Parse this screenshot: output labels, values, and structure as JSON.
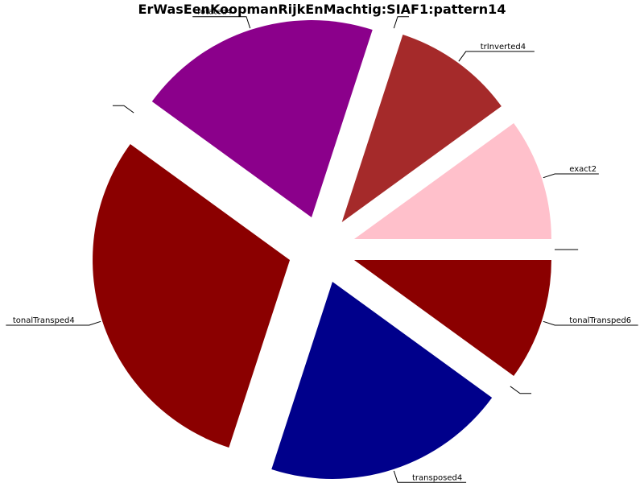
{
  "chart_data": {
    "type": "pie",
    "title": "ErWasEenKoopmanRijkEnMachtig:SIAF1:pattern14",
    "slices": [
      {
        "label": "exact2",
        "value": 1,
        "color": "#ffc0cb"
      },
      {
        "label": "trInverted4",
        "value": 1,
        "color": "#a52a2a"
      },
      {
        "label": "",
        "value": 0,
        "color": "#ffffff"
      },
      {
        "label": "rotated4",
        "value": 2,
        "color": "#8b008b"
      },
      {
        "label": "",
        "value": 0,
        "color": "#ffffff"
      },
      {
        "label": "tonalTransped4",
        "value": 3,
        "color": "#8b0000"
      },
      {
        "label": "transposed4",
        "value": 2,
        "color": "#00008b"
      },
      {
        "label": "",
        "value": 0,
        "color": "#ffffff"
      },
      {
        "label": "tonalTransped6",
        "value": 1,
        "color": "#8b0000"
      },
      {
        "label": "",
        "value": 0,
        "color": "#ffffff"
      }
    ],
    "start_angle_deg": 0,
    "direction": "counterclockwise",
    "exploded": true,
    "legend": "none"
  }
}
